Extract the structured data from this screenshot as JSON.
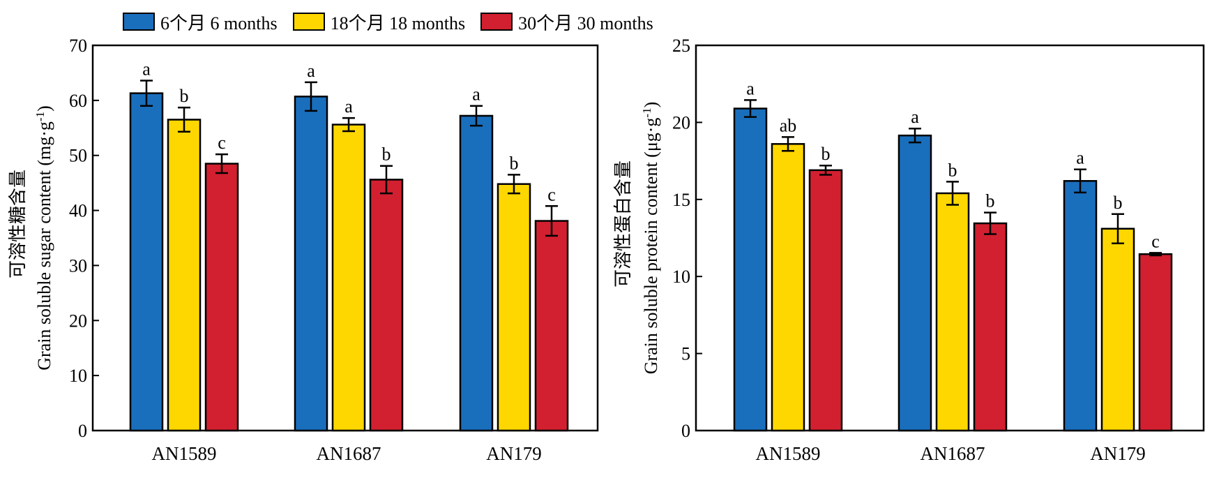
{
  "legend": [
    {
      "label": "6个月 6 months",
      "color": "#1a6fbd"
    },
    {
      "label": "18个月 18 months",
      "color": "#ffd700"
    },
    {
      "label": "30个月 30 months",
      "color": "#d22030"
    }
  ],
  "chart_data": [
    {
      "type": "bar",
      "ylabel_zh": "可溶性糖含量",
      "ylabel": "Grain soluble sugar content (mg·g",
      "ylabel_sup": "-1",
      "ylabel_end": ")",
      "ylim": [
        0,
        70
      ],
      "yticks": [
        0,
        10,
        20,
        30,
        40,
        50,
        60,
        70
      ],
      "categories": [
        "AN1589",
        "AN1687",
        "AN179"
      ],
      "series": [
        {
          "name": "6个月 6 months",
          "values": [
            61.3,
            60.7,
            57.2
          ],
          "errors": [
            2.3,
            2.6,
            1.8
          ],
          "letters": [
            "a",
            "a",
            "a"
          ]
        },
        {
          "name": "18个月 18 months",
          "values": [
            56.5,
            55.6,
            44.8
          ],
          "errors": [
            2.2,
            1.2,
            1.7
          ],
          "letters": [
            "b",
            "a",
            "b"
          ]
        },
        {
          "name": "30个月 30 months",
          "values": [
            48.5,
            45.6,
            38.1
          ],
          "errors": [
            1.7,
            2.5,
            2.7
          ],
          "letters": [
            "c",
            "b",
            "c"
          ]
        }
      ]
    },
    {
      "type": "bar",
      "ylabel_zh": "可溶性蛋白含量",
      "ylabel": "Grain soluble protein content (μg·g",
      "ylabel_sup": "-1",
      "ylabel_end": ")",
      "ylim": [
        0,
        25
      ],
      "yticks": [
        0,
        5,
        10,
        15,
        20,
        25
      ],
      "categories": [
        "AN1589",
        "AN1687",
        "AN179"
      ],
      "series": [
        {
          "name": "6个月 6 months",
          "values": [
            20.9,
            19.15,
            16.2
          ],
          "errors": [
            0.55,
            0.45,
            0.75
          ],
          "letters": [
            "a",
            "a",
            "a"
          ]
        },
        {
          "name": "18个月 18 months",
          "values": [
            18.6,
            15.4,
            13.1
          ],
          "errors": [
            0.45,
            0.75,
            0.95
          ],
          "letters": [
            "ab",
            "b",
            "b"
          ]
        },
        {
          "name": "30个月 30 months",
          "values": [
            16.9,
            13.45,
            11.45
          ],
          "errors": [
            0.3,
            0.7,
            0.08
          ],
          "letters": [
            "b",
            "b",
            "c"
          ]
        }
      ]
    }
  ]
}
